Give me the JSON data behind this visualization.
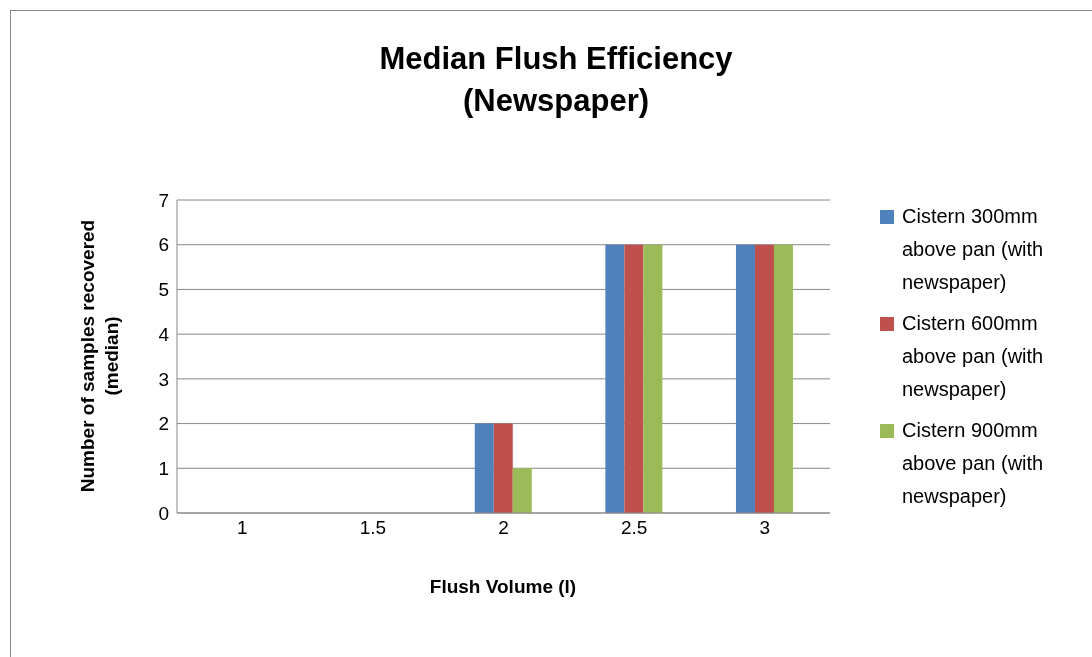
{
  "chart_data": {
    "type": "bar",
    "title": "Median Flush Efficiency\n(Newspaper)",
    "xlabel": "Flush Volume (l)",
    "ylabel": "Number of samples recovered\n(median)",
    "categories": [
      "1",
      "1.5",
      "2",
      "2.5",
      "3"
    ],
    "series": [
      {
        "name": "Cistern 300mm above pan (with newspaper)",
        "color": "#4f81bd",
        "values": [
          0,
          0,
          2,
          6,
          6
        ]
      },
      {
        "name": "Cistern 600mm above pan (with newspaper)",
        "color": "#c0504d",
        "values": [
          0,
          0,
          2,
          6,
          6
        ]
      },
      {
        "name": "Cistern 900mm above pan (with newspaper)",
        "color": "#9bbb59",
        "values": [
          0,
          0,
          1,
          6,
          6
        ]
      }
    ],
    "ylim": [
      0,
      7
    ],
    "yticks": [
      0,
      1,
      2,
      3,
      4,
      5,
      6,
      7
    ],
    "grid": "y",
    "legend": "right"
  }
}
